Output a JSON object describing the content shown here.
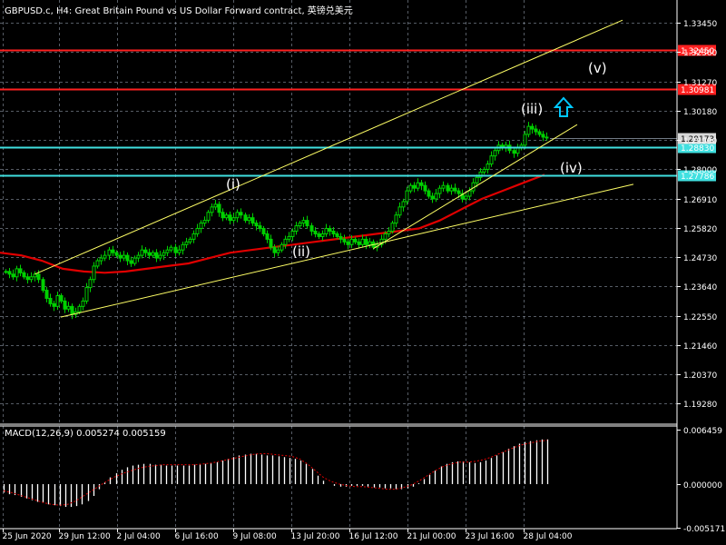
{
  "header": {
    "title": "GBPUSD.c, H4:  Great Britain Pound vs US Dollar Forward contract, 英镑兑美元"
  },
  "macd_panel": {
    "label": "MACD(12,26,9) 0.005274 0.005159"
  },
  "colors": {
    "background": "#000000",
    "grid": "#8f9aa8",
    "candles": "#00d000",
    "moving_average": "#e00000",
    "channel_lines": "#ffff66",
    "resistance_red": "#ff2020",
    "support_cyan": "#40e0e0",
    "macd_hist": "#ffffff",
    "macd_signal": "#e00000",
    "arrow": "#00c8ff"
  },
  "chart_data": [
    {
      "type": "line",
      "subtype": "candlestick",
      "symbol": "GBPUSD.c",
      "timeframe": "H4",
      "grid": true,
      "y_ticks": [
        "1.33450",
        "1.32360",
        "1.31270",
        "1.30180",
        "1.29090",
        "1.28000",
        "1.26910",
        "1.25820",
        "1.24730",
        "1.23640",
        "1.22550",
        "1.21460",
        "1.20370",
        "1.19280"
      ],
      "x_ticks": [
        "25 Jun 2020",
        "29 Jun 12:00",
        "2 Jul 04:00",
        "6 Jul 16:00",
        "9 Jul 08:00",
        "13 Jul 20:00",
        "16 Jul 12:00",
        "21 Jul 00:00",
        "23 Jul 16:00",
        "28 Jul 04:00"
      ],
      "ylim": [
        1.1855,
        1.341
      ],
      "close_series": [
        1.242,
        1.241,
        1.24,
        1.243,
        1.2415,
        1.24,
        1.239,
        1.24,
        1.241,
        1.239,
        1.235,
        1.232,
        1.23,
        1.229,
        1.233,
        1.231,
        1.228,
        1.229,
        1.226,
        1.227,
        1.229,
        1.231,
        1.236,
        1.239,
        1.244,
        1.246,
        1.247,
        1.248,
        1.25,
        1.249,
        1.248,
        1.247,
        1.248,
        1.246,
        1.245,
        1.247,
        1.248,
        1.25,
        1.249,
        1.248,
        1.249,
        1.247,
        1.248,
        1.249,
        1.25,
        1.251,
        1.249,
        1.25,
        1.252,
        1.253,
        1.254,
        1.256,
        1.258,
        1.26,
        1.261,
        1.264,
        1.266,
        1.267,
        1.264,
        1.262,
        1.263,
        1.261,
        1.262,
        1.264,
        1.263,
        1.261,
        1.262,
        1.26,
        1.259,
        1.258,
        1.256,
        1.254,
        1.251,
        1.249,
        1.25,
        1.252,
        1.254,
        1.255,
        1.257,
        1.259,
        1.26,
        1.261,
        1.259,
        1.257,
        1.256,
        1.255,
        1.256,
        1.258,
        1.257,
        1.256,
        1.255,
        1.254,
        1.253,
        1.252,
        1.254,
        1.253,
        1.252,
        1.254,
        1.252,
        1.253,
        1.251,
        1.252,
        1.254,
        1.256,
        1.257,
        1.26,
        1.263,
        1.266,
        1.268,
        1.272,
        1.274,
        1.273,
        1.275,
        1.274,
        1.272,
        1.27,
        1.269,
        1.271,
        1.273,
        1.274,
        1.272,
        1.273,
        1.272,
        1.271,
        1.269,
        1.27,
        1.272,
        1.275,
        1.277,
        1.279,
        1.28,
        1.282,
        1.285,
        1.287,
        1.289,
        1.288,
        1.289,
        1.287,
        1.286,
        1.288,
        1.289,
        1.293,
        1.296,
        1.295,
        1.294,
        1.293,
        1.292,
        1.2917
      ],
      "moving_average": {
        "start": 1.249,
        "points": [
          1.249,
          1.248,
          1.246,
          1.243,
          1.242,
          1.2415,
          1.242,
          1.243,
          1.244,
          1.245,
          1.247,
          1.249,
          1.25,
          1.251,
          1.252,
          1.253,
          1.254,
          1.255,
          1.256,
          1.257,
          1.258,
          1.261,
          1.265,
          1.269,
          1.272,
          1.275,
          1.278
        ]
      },
      "horizontal_levels": [
        {
          "value": "1.32450",
          "price": 1.3245,
          "color": "#ff2020"
        },
        {
          "value": "1.30981",
          "price": 1.30981,
          "color": "#ff2020"
        },
        {
          "value": "1.28830",
          "price": 1.2883,
          "color": "#40e0e0"
        },
        {
          "value": "1.27786",
          "price": 1.27786,
          "color": "#40e0e0"
        }
      ],
      "current_price": "1.29173",
      "wave_labels": [
        "(i)",
        "(ii)",
        "(iii)",
        "(iv)",
        "(v)"
      ]
    },
    {
      "type": "bar",
      "name": "MACD(12,26,9)",
      "y_ticks": [
        "0.006459",
        "0.000000",
        "-0.005171"
      ],
      "ylim": [
        -0.005171,
        0.006459
      ],
      "histogram": [
        -0.001,
        -0.0012,
        -0.0013,
        -0.0015,
        -0.0017,
        -0.0019,
        -0.0021,
        -0.0022,
        -0.0024,
        -0.0025,
        -0.0026,
        -0.0027,
        -0.0027,
        -0.0026,
        -0.0024,
        -0.002,
        -0.0014,
        -0.0006,
        0.0002,
        0.0008,
        0.0013,
        0.0017,
        0.002,
        0.0022,
        0.0023,
        0.0024,
        0.0024,
        0.0023,
        0.0023,
        0.0022,
        0.0022,
        0.0022,
        0.0022,
        0.0022,
        0.0023,
        0.0023,
        0.0024,
        0.0025,
        0.0026,
        0.0028,
        0.003,
        0.0032,
        0.0034,
        0.0035,
        0.0036,
        0.0036,
        0.0035,
        0.0034,
        0.0034,
        0.0033,
        0.0032,
        0.0031,
        0.003,
        0.0028,
        0.0024,
        0.0018,
        0.001,
        0.0004,
        0.0,
        -0.0002,
        -0.0003,
        -0.0003,
        -0.0002,
        -0.0002,
        -0.0002,
        -0.0003,
        -0.0004,
        -0.0004,
        -0.0005,
        -0.0005,
        -0.0006,
        -0.0006,
        -0.0005,
        -0.0003,
        0.0001,
        0.0006,
        0.0011,
        0.0016,
        0.0021,
        0.0024,
        0.0026,
        0.0027,
        0.0027,
        0.0026,
        0.0025,
        0.0026,
        0.0028,
        0.0031,
        0.0034,
        0.0038,
        0.0042,
        0.0045,
        0.0048,
        0.005,
        0.0051,
        0.0052,
        0.0053,
        0.0053
      ],
      "signal": [
        -0.0008,
        -0.001,
        -0.0013,
        -0.0016,
        -0.0019,
        -0.0022,
        -0.0024,
        -0.0025,
        -0.0024,
        -0.002,
        -0.0014,
        -0.0008,
        -0.0002,
        0.0004,
        0.0009,
        0.0013,
        0.0016,
        0.0019,
        0.0021,
        0.0022,
        0.0023,
        0.0023,
        0.0023,
        0.0023,
        0.0023,
        0.0024,
        0.0025,
        0.0027,
        0.0029,
        0.0031,
        0.0033,
        0.0035,
        0.0036,
        0.0036,
        0.0035,
        0.0034,
        0.0033,
        0.003,
        0.0024,
        0.0016,
        0.0008,
        0.0003,
        0.0,
        -0.0002,
        -0.0003,
        -0.0003,
        -0.0004,
        -0.0005,
        -0.0006,
        -0.0006,
        -0.0004,
        -0.0001,
        0.0004,
        0.001,
        0.0016,
        0.0021,
        0.0024,
        0.0026,
        0.0026,
        0.0027,
        0.0029,
        0.0032,
        0.0036,
        0.004,
        0.0044,
        0.0047,
        0.0049,
        0.0051,
        0.0052
      ]
    }
  ]
}
